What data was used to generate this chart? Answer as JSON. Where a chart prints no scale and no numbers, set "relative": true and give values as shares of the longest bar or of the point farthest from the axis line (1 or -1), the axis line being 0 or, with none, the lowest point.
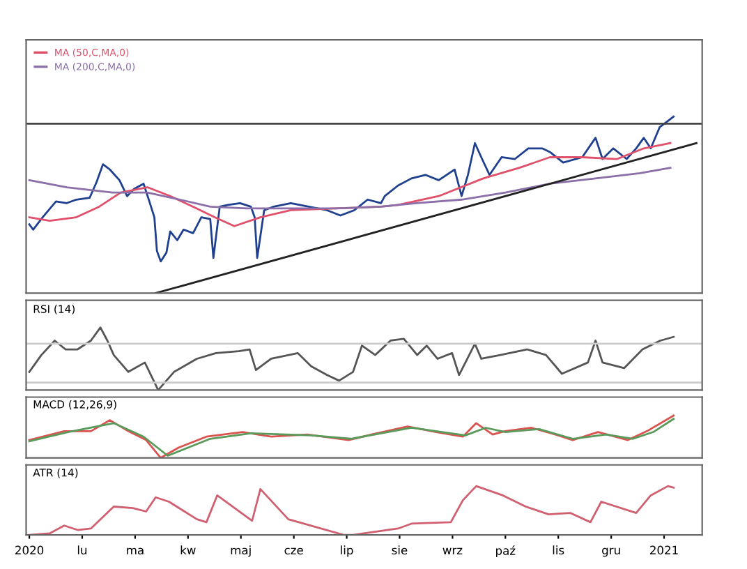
{
  "chart_data": [
    {
      "type": "line",
      "relative": true,
      "legend": "top left",
      "tick_labels": false,
      "xlim": [
        2019.995,
        2021.06
      ],
      "series": [
        {
          "color": "#1f3f8f",
          "x": [
            2020.0,
            2020.006,
            2020.021,
            2020.042,
            2020.059,
            2020.074,
            2020.095,
            2020.106,
            2020.116,
            2020.127,
            2020.142,
            2020.154,
            2020.165,
            2020.18,
            2020.19,
            2020.197,
            2020.201,
            2020.207,
            2020.216,
            2020.222,
            2020.233,
            2020.243,
            2020.258,
            2020.271,
            2020.285,
            2020.29,
            2020.3,
            2020.313,
            2020.332,
            2020.349,
            2020.355,
            2020.359,
            2020.37,
            2020.385,
            2020.412,
            2020.44,
            2020.469,
            2020.49,
            2020.512,
            2020.533,
            2020.554,
            2020.56,
            2020.581,
            2020.602,
            2020.624,
            2020.645,
            2020.67,
            2020.681,
            2020.691,
            2020.702,
            2020.712,
            2020.725,
            2020.744,
            2020.765,
            2020.786,
            2020.808,
            2020.82,
            2020.841,
            2020.871,
            2020.892,
            2020.903,
            2020.92,
            2020.941,
            2020.956,
            2020.968,
            2020.979,
            2020.993,
            2021.004,
            2021.015
          ],
          "values": [
            0.39,
            0.36,
            0.43,
            0.52,
            0.51,
            0.53,
            0.54,
            0.63,
            0.73,
            0.7,
            0.64,
            0.55,
            0.59,
            0.62,
            0.51,
            0.43,
            0.24,
            0.18,
            0.23,
            0.35,
            0.3,
            0.36,
            0.34,
            0.43,
            0.42,
            0.2,
            0.49,
            0.5,
            0.51,
            0.49,
            0.43,
            0.2,
            0.47,
            0.49,
            0.51,
            0.49,
            0.47,
            0.44,
            0.47,
            0.53,
            0.51,
            0.55,
            0.61,
            0.65,
            0.67,
            0.64,
            0.7,
            0.55,
            0.67,
            0.85,
            0.77,
            0.67,
            0.77,
            0.76,
            0.82,
            0.82,
            0.8,
            0.74,
            0.77,
            0.88,
            0.76,
            0.82,
            0.76,
            0.82,
            0.88,
            0.82,
            0.94,
            0.97,
            1.0
          ]
        },
        {
          "name": "MA (50,C,MA,0)",
          "color": "#e0506a",
          "x": [
            2020.0,
            2020.032,
            2020.074,
            2020.11,
            2020.144,
            2020.186,
            2020.222,
            2020.258,
            2020.292,
            2020.323,
            2020.364,
            2020.412,
            2020.482,
            2020.554,
            2020.581,
            2020.645,
            2020.715,
            2020.772,
            2020.82,
            2020.871,
            2020.926,
            2020.968,
            2021.01
          ],
          "values": [
            0.43,
            0.41,
            0.43,
            0.49,
            0.57,
            0.6,
            0.55,
            0.49,
            0.43,
            0.38,
            0.43,
            0.47,
            0.48,
            0.49,
            0.5,
            0.55,
            0.65,
            0.71,
            0.77,
            0.77,
            0.76,
            0.82,
            0.85
          ]
        },
        {
          "name": "MA (200,C,MA,0)",
          "color": "#8a6fa8",
          "x": [
            2020.0,
            2020.059,
            2020.131,
            2020.186,
            2020.237,
            2020.285,
            2020.342,
            2020.412,
            2020.482,
            2020.554,
            2020.609,
            2020.681,
            2020.75,
            2020.82,
            2020.892,
            2020.962,
            2021.01
          ],
          "values": [
            0.64,
            0.6,
            0.57,
            0.57,
            0.53,
            0.49,
            0.48,
            0.48,
            0.48,
            0.49,
            0.51,
            0.53,
            0.57,
            0.62,
            0.65,
            0.68,
            0.71
          ]
        },
        {
          "color": "#222222",
          "x": [
            2020.199,
            2021.051
          ],
          "values": [
            0.0,
            0.85
          ]
        }
      ],
      "ref_lines": [
        {
          "axis": "y",
          "value": 0.96,
          "color": "#444444"
        }
      ]
    },
    {
      "type": "line",
      "relative": true,
      "title": "RSI (14)",
      "tick_labels": false,
      "xlim": [
        2019.995,
        2021.06
      ],
      "series": [
        {
          "color": "#555555",
          "x": [
            2020.0,
            2020.019,
            2020.04,
            2020.057,
            2020.076,
            2020.097,
            2020.112,
            2020.123,
            2020.133,
            2020.156,
            2020.182,
            2020.203,
            2020.228,
            2020.264,
            2020.294,
            2020.33,
            2020.347,
            2020.357,
            2020.381,
            2020.423,
            2020.444,
            2020.469,
            2020.488,
            2020.51,
            2020.524,
            2020.545,
            2020.569,
            2020.59,
            2020.611,
            2020.626,
            2020.643,
            2020.666,
            2020.677,
            2020.702,
            2020.712,
            2020.742,
            2020.784,
            2020.814,
            2020.839,
            2020.88,
            2020.892,
            2020.903,
            2020.937,
            2020.966,
            2020.994,
            2021.015
          ],
          "values": [
            0.29,
            0.56,
            0.79,
            0.65,
            0.65,
            0.79,
            1.0,
            0.79,
            0.56,
            0.29,
            0.44,
            0.0,
            0.29,
            0.5,
            0.59,
            0.62,
            0.65,
            0.32,
            0.5,
            0.59,
            0.38,
            0.24,
            0.15,
            0.29,
            0.71,
            0.56,
            0.79,
            0.82,
            0.56,
            0.71,
            0.5,
            0.59,
            0.24,
            0.74,
            0.5,
            0.56,
            0.65,
            0.56,
            0.26,
            0.44,
            0.79,
            0.44,
            0.35,
            0.65,
            0.79,
            0.85
          ]
        }
      ],
      "ref_lines": [
        {
          "axis": "y",
          "value": 0.74,
          "color": "#cccccc"
        },
        {
          "axis": "y",
          "value": 0.12,
          "color": "#cccccc"
        }
      ]
    },
    {
      "type": "line",
      "relative": true,
      "title": "MACD (12,26,9)",
      "tick_labels": false,
      "xlim": [
        2019.995,
        2021.06
      ],
      "series": [
        {
          "color": "#d9534f",
          "x": [
            2020.0,
            2020.055,
            2020.097,
            2020.127,
            2020.156,
            2020.184,
            2020.207,
            2020.235,
            2020.279,
            2020.336,
            2020.381,
            2020.438,
            2020.503,
            2020.539,
            2020.596,
            2020.641,
            2020.683,
            2020.704,
            2020.73,
            2020.749,
            2020.791,
            2020.829,
            2020.856,
            2020.896,
            2020.943,
            2020.973,
            2021.015
          ],
          "values": [
            0.42,
            0.63,
            0.63,
            0.89,
            0.63,
            0.42,
            0.0,
            0.24,
            0.5,
            0.61,
            0.5,
            0.55,
            0.42,
            0.55,
            0.74,
            0.61,
            0.5,
            0.82,
            0.55,
            0.63,
            0.71,
            0.55,
            0.42,
            0.61,
            0.42,
            0.63,
            1.0
          ]
        },
        {
          "color": "#5a9a5a",
          "x": [
            2020.0,
            2020.061,
            2020.133,
            2020.18,
            2020.218,
            2020.285,
            2020.349,
            2020.444,
            2020.507,
            2020.602,
            2020.687,
            2020.719,
            2020.75,
            2020.803,
            2020.856,
            2020.909,
            2020.951,
            2020.983,
            2021.015
          ],
          "values": [
            0.39,
            0.61,
            0.82,
            0.5,
            0.05,
            0.45,
            0.58,
            0.53,
            0.45,
            0.71,
            0.53,
            0.71,
            0.61,
            0.68,
            0.45,
            0.55,
            0.45,
            0.61,
            0.92
          ]
        }
      ]
    },
    {
      "type": "line",
      "relative": true,
      "title": "ATR (14)",
      "tick_labels": "x",
      "xlim": [
        2019.995,
        2021.06
      ],
      "xticks": [
        {
          "value": 2020.0,
          "label": "2020"
        },
        {
          "value": 2020.0833,
          "label": "lu"
        },
        {
          "value": 2020.1667,
          "label": "ma"
        },
        {
          "value": 2020.25,
          "label": "kw"
        },
        {
          "value": 2020.3333,
          "label": "maj"
        },
        {
          "value": 2020.4167,
          "label": "cze"
        },
        {
          "value": 2020.5,
          "label": "lip"
        },
        {
          "value": 2020.5833,
          "label": "sie"
        },
        {
          "value": 2020.6667,
          "label": "wrz"
        },
        {
          "value": 2020.75,
          "label": "paź"
        },
        {
          "value": 2020.8333,
          "label": "lis"
        },
        {
          "value": 2020.9167,
          "label": "gru"
        },
        {
          "value": 2021.0,
          "label": "2021"
        }
      ],
      "series": [
        {
          "color": "#d06070",
          "x": [
            2020.0,
            2020.032,
            2020.055,
            2020.076,
            2020.097,
            2020.133,
            2020.163,
            2020.184,
            2020.199,
            2020.22,
            2020.264,
            2020.279,
            2020.296,
            2020.351,
            2020.364,
            2020.408,
            2020.495,
            2020.51,
            2020.581,
            2020.602,
            2020.664,
            2020.683,
            2020.704,
            2020.746,
            2020.782,
            2020.818,
            2020.852,
            2020.884,
            2020.901,
            2020.956,
            2020.979,
            2021.006,
            2021.015
          ],
          "values": [
            0.0,
            0.03,
            0.19,
            0.1,
            0.13,
            0.58,
            0.55,
            0.48,
            0.77,
            0.68,
            0.32,
            0.26,
            0.81,
            0.29,
            0.94,
            0.32,
            0.0,
            0.0,
            0.13,
            0.23,
            0.26,
            0.71,
            1.0,
            0.81,
            0.58,
            0.42,
            0.45,
            0.26,
            0.68,
            0.45,
            0.81,
            1.0,
            0.97
          ]
        }
      ]
    }
  ]
}
